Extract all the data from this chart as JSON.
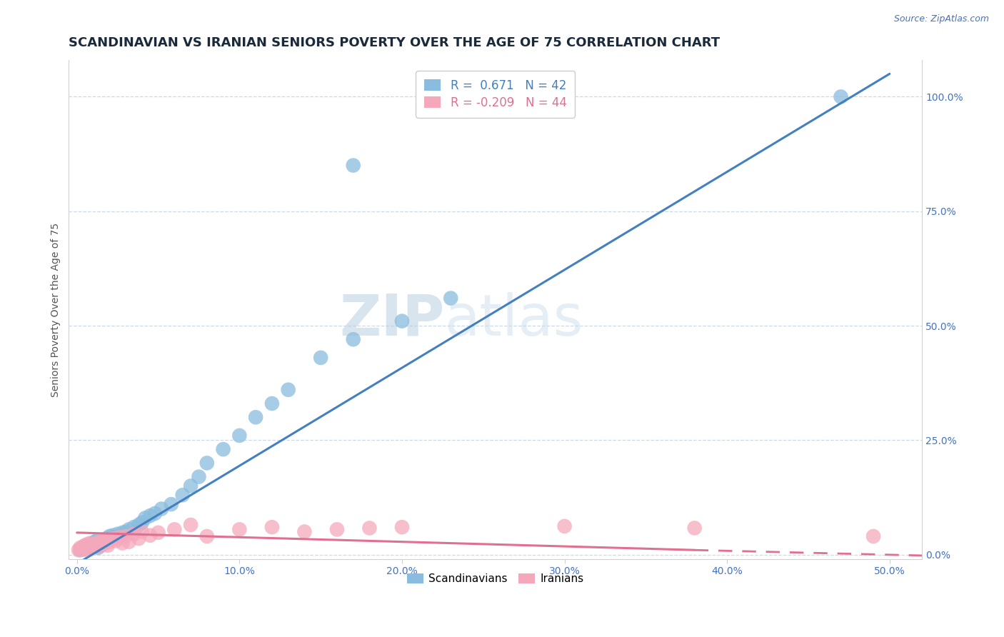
{
  "title": "SCANDINAVIAN VS IRANIAN SENIORS POVERTY OVER THE AGE OF 75 CORRELATION CHART",
  "source_text": "Source: ZipAtlas.com",
  "ylabel": "Seniors Poverty Over the Age of 75",
  "xlim": [
    -0.005,
    0.52
  ],
  "ylim": [
    -0.01,
    1.08
  ],
  "xtick_labels": [
    "0.0%",
    "10.0%",
    "20.0%",
    "30.0%",
    "40.0%",
    "50.0%"
  ],
  "xtick_vals": [
    0.0,
    0.1,
    0.2,
    0.3,
    0.4,
    0.5
  ],
  "ytick_labels_right": [
    "0.0%",
    "25.0%",
    "50.0%",
    "75.0%",
    "100.0%"
  ],
  "ytick_vals_right": [
    0.0,
    0.25,
    0.5,
    0.75,
    1.0
  ],
  "grid_color": "#ccd9e8",
  "background_color": "#ffffff",
  "watermark_text": "ZIPatlas",
  "watermark_color": "#c8d8ea",
  "scandinavian_color": "#89bcde",
  "iranian_color": "#f5a8bc",
  "trend_scandinavian_color": "#4480c0",
  "trend_iranian_color": "#e07090",
  "legend_R_scandinavian": "0.671",
  "legend_N_scandinavian": "42",
  "legend_R_iranian": "-0.209",
  "legend_N_iranian": "44",
  "title_fontsize": 13,
  "axis_label_fontsize": 10,
  "tick_fontsize": 10,
  "legend_fontsize": 12,
  "scandinavian_x": [
    0.002,
    0.004,
    0.006,
    0.007,
    0.008,
    0.009,
    0.01,
    0.011,
    0.012,
    0.013,
    0.015,
    0.016,
    0.018,
    0.02,
    0.022,
    0.025,
    0.028,
    0.03,
    0.032,
    0.035,
    0.038,
    0.04,
    0.042,
    0.045,
    0.048,
    0.052,
    0.058,
    0.065,
    0.07,
    0.075,
    0.08,
    0.09,
    0.1,
    0.11,
    0.12,
    0.13,
    0.15,
    0.17,
    0.2,
    0.23,
    0.17,
    0.47
  ],
  "scandinavian_y": [
    0.01,
    0.012,
    0.015,
    0.018,
    0.02,
    0.022,
    0.025,
    0.028,
    0.03,
    0.015,
    0.02,
    0.025,
    0.035,
    0.04,
    0.042,
    0.045,
    0.048,
    0.05,
    0.055,
    0.06,
    0.065,
    0.07,
    0.08,
    0.085,
    0.09,
    0.1,
    0.11,
    0.13,
    0.15,
    0.17,
    0.2,
    0.23,
    0.26,
    0.3,
    0.33,
    0.36,
    0.43,
    0.47,
    0.51,
    0.56,
    0.85,
    1.0
  ],
  "iranian_x": [
    0.001,
    0.002,
    0.003,
    0.004,
    0.005,
    0.006,
    0.006,
    0.007,
    0.008,
    0.009,
    0.01,
    0.011,
    0.012,
    0.013,
    0.014,
    0.015,
    0.016,
    0.017,
    0.018,
    0.019,
    0.02,
    0.022,
    0.024,
    0.026,
    0.028,
    0.03,
    0.032,
    0.035,
    0.038,
    0.04,
    0.045,
    0.05,
    0.06,
    0.07,
    0.08,
    0.1,
    0.12,
    0.14,
    0.16,
    0.18,
    0.2,
    0.3,
    0.38,
    0.49
  ],
  "iranian_y": [
    0.01,
    0.015,
    0.012,
    0.018,
    0.02,
    0.01,
    0.022,
    0.015,
    0.025,
    0.018,
    0.022,
    0.02,
    0.025,
    0.018,
    0.028,
    0.022,
    0.03,
    0.025,
    0.032,
    0.02,
    0.028,
    0.035,
    0.03,
    0.038,
    0.025,
    0.04,
    0.028,
    0.045,
    0.035,
    0.05,
    0.042,
    0.048,
    0.055,
    0.065,
    0.04,
    0.055,
    0.06,
    0.05,
    0.055,
    0.058,
    0.06,
    0.062,
    0.058,
    0.04
  ],
  "trend_scand_x0": 0.0,
  "trend_scand_x1": 0.5,
  "trend_scand_y0": -0.02,
  "trend_scand_y1": 1.05,
  "trend_iran_x0": 0.0,
  "trend_iran_x1": 0.38,
  "trend_iran_y0": 0.048,
  "trend_iran_y1": 0.01,
  "trend_iran_dash_x0": 0.38,
  "trend_iran_dash_x1": 0.52,
  "trend_iran_dash_y0": 0.01,
  "trend_iran_dash_y1": -0.002
}
